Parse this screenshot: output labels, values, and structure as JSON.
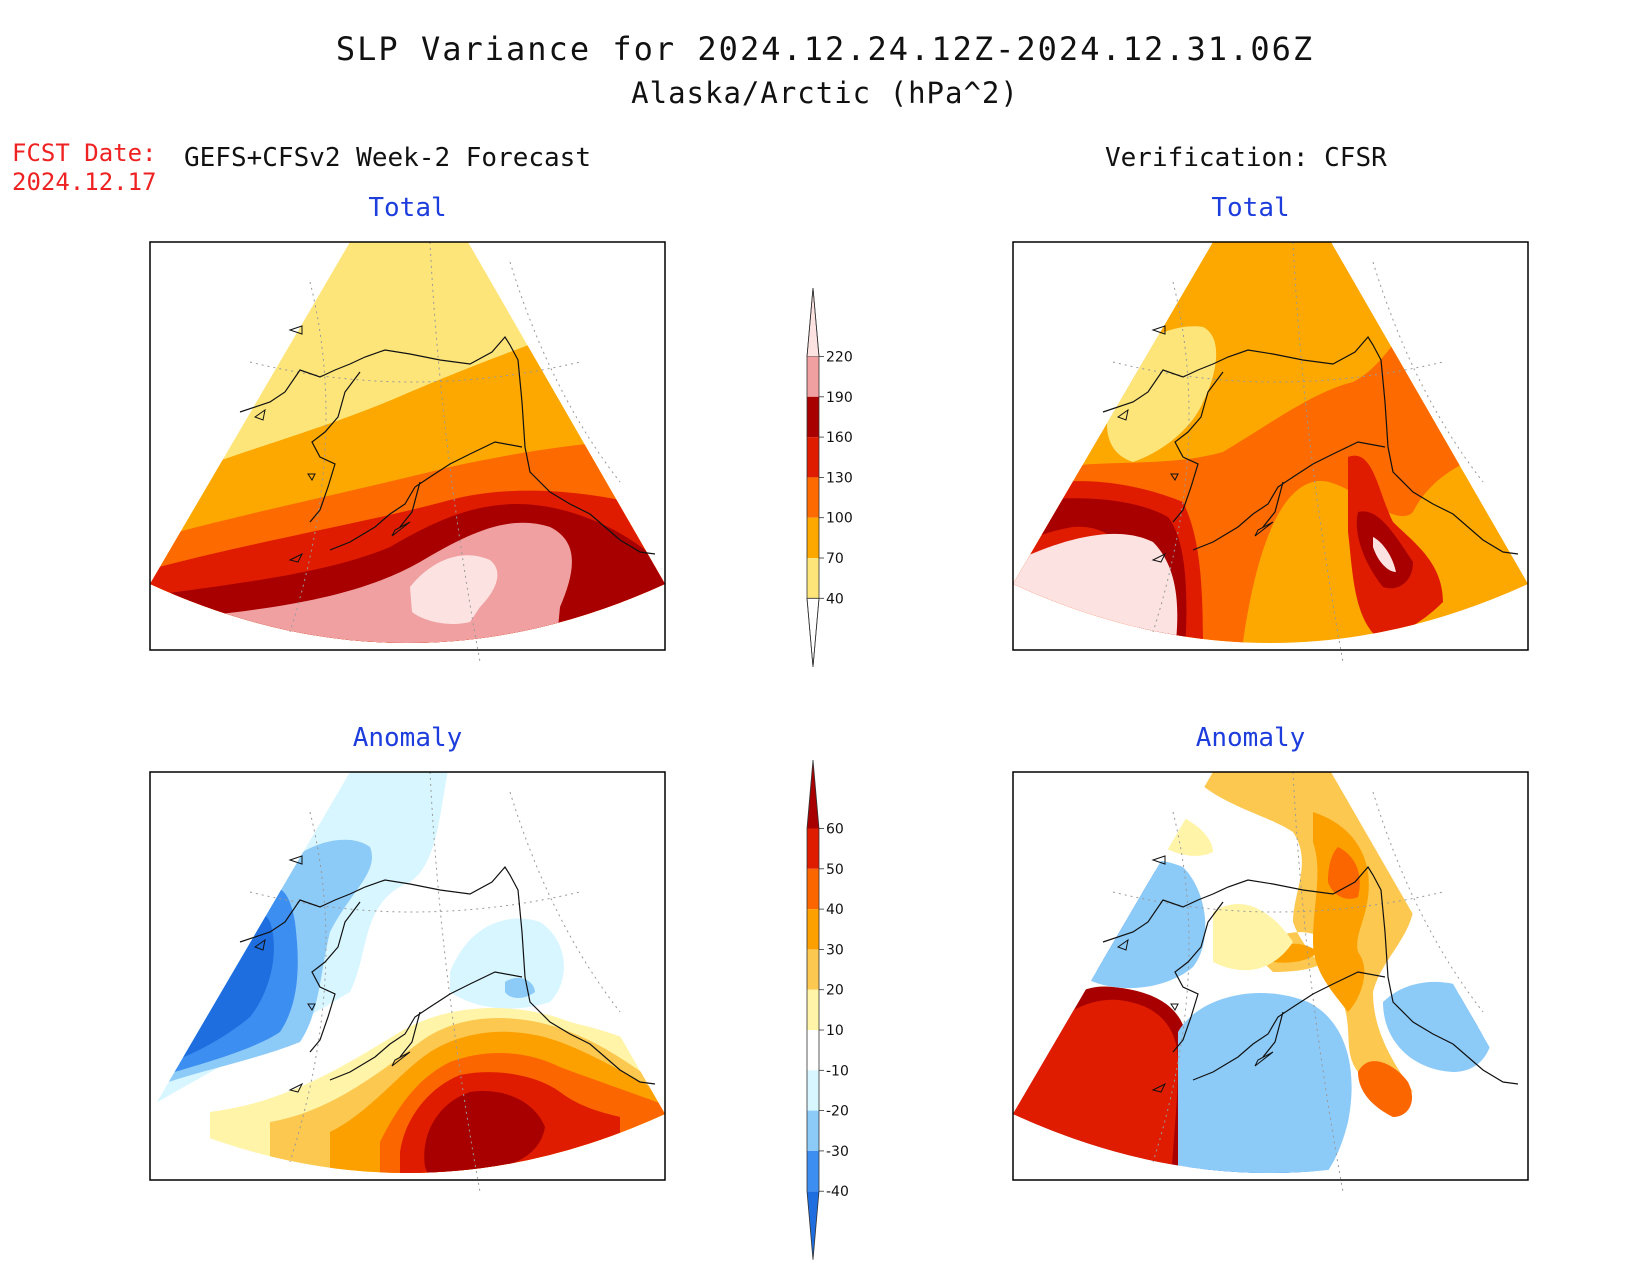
{
  "title": {
    "line1": "SLP Variance for 2024.12.24.12Z-2024.12.31.06Z",
    "line2": "Alaska/Arctic (hPa^2)"
  },
  "forecast": {
    "date_label": "FCST Date:",
    "date_value": "2024.12.17",
    "heading": "GEFS+CFSv2 Week-2 Forecast"
  },
  "verification": {
    "heading": "Verification: CFSR"
  },
  "panels": {
    "fcst_total": {
      "title": "Total"
    },
    "fcst_anomaly": {
      "title": "Anomaly"
    },
    "verif_total": {
      "title": "Total"
    },
    "verif_anomaly": {
      "title": "Anomaly"
    }
  },
  "colorbars": {
    "total": {
      "levels": [
        "40",
        "70",
        "100",
        "130",
        "160",
        "190",
        "220"
      ],
      "colors": [
        "#ffffff",
        "#fde57a",
        "#fca800",
        "#fc6a00",
        "#e01c00",
        "#a80000",
        "#f0a0a0",
        "#fde2e2"
      ]
    },
    "anomaly": {
      "levels": [
        "-40",
        "-30",
        "-20",
        "-10",
        "10",
        "20",
        "30",
        "40",
        "50",
        "60"
      ],
      "colors": [
        "#1e6ee0",
        "#3c8ef0",
        "#8ccaf8",
        "#d8f6ff",
        "#ffffff",
        "#fff4a8",
        "#fcc850",
        "#fca000",
        "#fc6600",
        "#e01c00",
        "#a80000"
      ]
    }
  },
  "map_fills": {
    "fcst_total": [
      "#fde57a",
      "#fca800",
      "#fc6a00",
      "#e01c00",
      "#a80000",
      "#f0a0a0",
      "#fde2e2"
    ],
    "verif_total": [
      "#fca800",
      "#fde57a",
      "#fc6a00",
      "#e01c00",
      "#a80000",
      "#fde2e2"
    ],
    "fcst_anomaly": [
      "#d8f6ff",
      "#8ccaf8",
      "#3c8ef0",
      "#1e6ee0",
      "#fff4a8",
      "#fcc850",
      "#fca000",
      "#fc6600",
      "#e01c00",
      "#a80000"
    ],
    "verif_anomaly": [
      "#fcc850",
      "#fca000",
      "#fc6600",
      "#a80000",
      "#1e6ee0",
      "#3c8ef0",
      "#8ccaf8",
      "#e01c00",
      "#fff4a8"
    ]
  }
}
